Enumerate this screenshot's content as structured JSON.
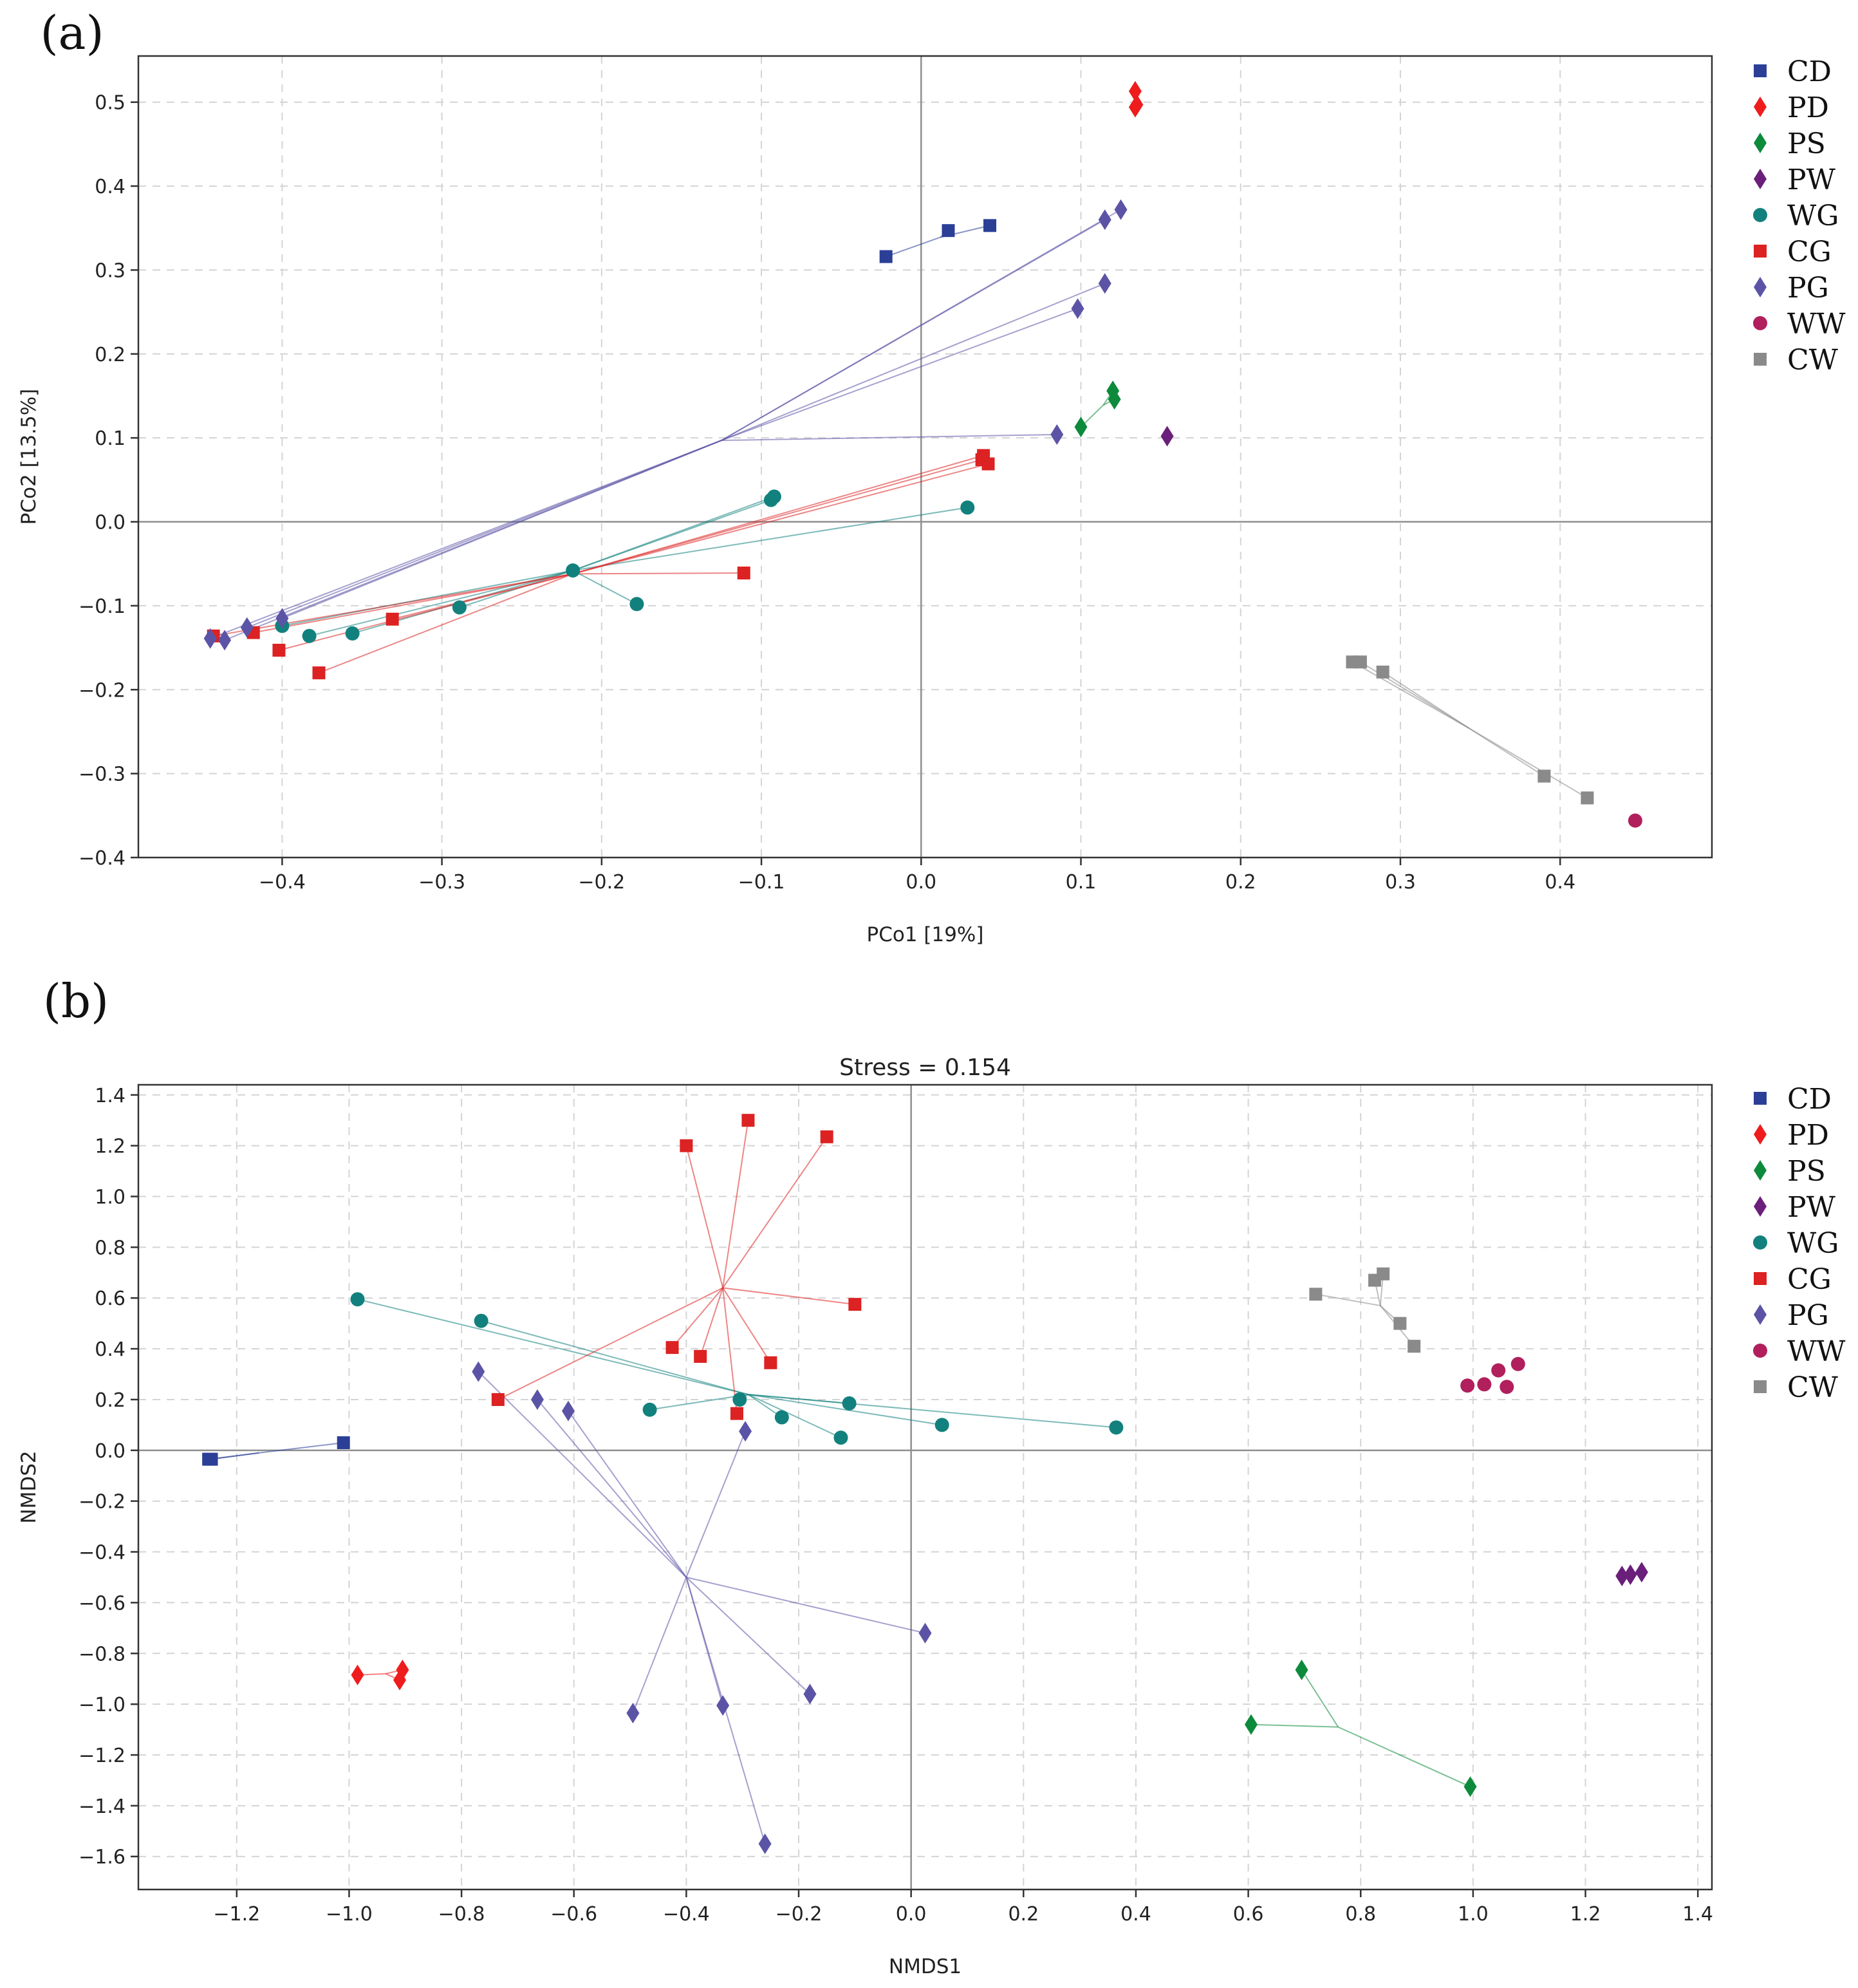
{
  "chart_data": [
    {
      "panel_label": "(a)",
      "type": "scatter",
      "title": "",
      "xlabel": "PCo1 [19%]",
      "ylabel": "PCo2 [13.5%]",
      "xlim": [
        -0.49,
        0.495
      ],
      "ylim": [
        -0.4,
        0.555
      ],
      "grid": true,
      "legend_position": "outside-right",
      "xticks": [
        {
          "value": -0.4,
          "label": "−0.4"
        },
        {
          "value": -0.3,
          "label": "−0.3"
        },
        {
          "value": -0.2,
          "label": "−0.2"
        },
        {
          "value": -0.1,
          "label": "−0.1"
        },
        {
          "value": 0.0,
          "label": "0.0"
        },
        {
          "value": 0.1,
          "label": "0.1"
        },
        {
          "value": 0.2,
          "label": "0.2"
        },
        {
          "value": 0.3,
          "label": "0.3"
        },
        {
          "value": 0.4,
          "label": "0.4"
        }
      ],
      "yticks": [
        {
          "value": -0.4,
          "label": "−0.4"
        },
        {
          "value": -0.3,
          "label": "−0.3"
        },
        {
          "value": -0.2,
          "label": "−0.2"
        },
        {
          "value": -0.1,
          "label": "−0.1"
        },
        {
          "value": 0.0,
          "label": "0.0"
        },
        {
          "value": 0.1,
          "label": "0.1"
        },
        {
          "value": 0.2,
          "label": "0.2"
        },
        {
          "value": 0.3,
          "label": "0.3"
        },
        {
          "value": 0.4,
          "label": "0.4"
        },
        {
          "value": 0.5,
          "label": "0.5"
        }
      ],
      "series": [
        {
          "name": "CD",
          "color": "#2b3f97",
          "marker": "square",
          "centroid": [
            0.012,
            0.339
          ],
          "points": [
            [
              -0.022,
              0.316
            ],
            [
              0.017,
              0.347
            ],
            [
              0.043,
              0.353
            ]
          ]
        },
        {
          "name": "PD",
          "color": "#ee1c1c",
          "marker": "diamond",
          "centroid": [
            0.134,
            0.503
          ],
          "points": [
            [
              0.134,
              0.513
            ],
            [
              0.134,
              0.494
            ],
            [
              0.135,
              0.497
            ]
          ]
        },
        {
          "name": "PS",
          "color": "#0e8a3c",
          "marker": "diamond",
          "centroid": [
            0.114,
            0.139
          ],
          "points": [
            [
              0.1,
              0.113
            ],
            [
              0.12,
              0.156
            ],
            [
              0.121,
              0.146
            ]
          ]
        },
        {
          "name": "PW",
          "color": "#6a1f7a",
          "marker": "diamond",
          "centroid": null,
          "points": [
            [
              0.154,
              0.102
            ]
          ]
        },
        {
          "name": "WG",
          "color": "#12817e",
          "marker": "circle",
          "centroid": [
            -0.218,
            -0.058
          ],
          "points": [
            [
              -0.094,
              0.026
            ],
            [
              -0.092,
              0.03
            ],
            [
              0.029,
              0.017
            ],
            [
              -0.178,
              -0.098
            ],
            [
              -0.289,
              -0.102
            ],
            [
              -0.356,
              -0.133
            ],
            [
              -0.383,
              -0.136
            ],
            [
              -0.4,
              -0.124
            ],
            [
              -0.218,
              -0.058
            ]
          ]
        },
        {
          "name": "CG",
          "color": "#dc2222",
          "marker": "square",
          "centroid": [
            -0.218,
            -0.062
          ],
          "points": [
            [
              0.039,
              0.079
            ],
            [
              0.042,
              0.069
            ],
            [
              0.038,
              0.074
            ],
            [
              -0.111,
              -0.061
            ],
            [
              -0.331,
              -0.116
            ],
            [
              -0.418,
              -0.132
            ],
            [
              -0.402,
              -0.153
            ],
            [
              -0.377,
              -0.18
            ],
            [
              -0.443,
              -0.136
            ]
          ]
        },
        {
          "name": "PG",
          "color": "#5b54a6",
          "marker": "diamond",
          "centroid": [
            -0.125,
            0.097
          ],
          "points": [
            [
              0.115,
              0.36
            ],
            [
              0.125,
              0.372
            ],
            [
              0.115,
              0.284
            ],
            [
              0.098,
              0.254
            ],
            [
              0.085,
              0.104
            ],
            [
              -0.4,
              -0.115
            ],
            [
              -0.422,
              -0.126
            ],
            [
              -0.436,
              -0.141
            ],
            [
              -0.445,
              -0.139
            ]
          ]
        },
        {
          "name": "WW",
          "color": "#b11f5c",
          "marker": "circle",
          "centroid": null,
          "points": [
            [
              0.447,
              -0.356
            ]
          ]
        },
        {
          "name": "CW",
          "color": "#8a8a8a",
          "marker": "square",
          "centroid": [
            0.343,
            -0.246
          ],
          "points": [
            [
              0.27,
              -0.167
            ],
            [
              0.275,
              -0.167
            ],
            [
              0.289,
              -0.179
            ],
            [
              0.39,
              -0.303
            ],
            [
              0.417,
              -0.329
            ]
          ]
        }
      ]
    },
    {
      "panel_label": "(b)",
      "type": "scatter",
      "title": "Stress = 0.154",
      "xlabel": "NMDS1",
      "ylabel": "NMDS2",
      "xlim": [
        -1.375,
        1.425
      ],
      "ylim": [
        -1.73,
        1.44
      ],
      "grid": true,
      "legend_position": "outside-right",
      "xticks": [
        {
          "value": -1.2,
          "label": "−1.2"
        },
        {
          "value": -1.0,
          "label": "−1.0"
        },
        {
          "value": -0.8,
          "label": "−0.8"
        },
        {
          "value": -0.6,
          "label": "−0.6"
        },
        {
          "value": -0.4,
          "label": "−0.4"
        },
        {
          "value": -0.2,
          "label": "−0.2"
        },
        {
          "value": 0.0,
          "label": "0.0"
        },
        {
          "value": 0.2,
          "label": "0.2"
        },
        {
          "value": 0.4,
          "label": "0.4"
        },
        {
          "value": 0.6,
          "label": "0.6"
        },
        {
          "value": 0.8,
          "label": "0.8"
        },
        {
          "value": 1.0,
          "label": "1.0"
        },
        {
          "value": 1.2,
          "label": "1.2"
        },
        {
          "value": 1.4,
          "label": "1.4"
        }
      ],
      "yticks": [
        {
          "value": -1.6,
          "label": "−1.6"
        },
        {
          "value": -1.4,
          "label": "−1.4"
        },
        {
          "value": -1.2,
          "label": "−1.2"
        },
        {
          "value": -1.0,
          "label": "−1.0"
        },
        {
          "value": -0.8,
          "label": "−0.8"
        },
        {
          "value": -0.6,
          "label": "−0.6"
        },
        {
          "value": -0.4,
          "label": "−0.4"
        },
        {
          "value": -0.2,
          "label": "−0.2"
        },
        {
          "value": 0.0,
          "label": "0.0"
        },
        {
          "value": 0.2,
          "label": "0.2"
        },
        {
          "value": 0.4,
          "label": "0.4"
        },
        {
          "value": 0.6,
          "label": "0.6"
        },
        {
          "value": 0.8,
          "label": "0.8"
        },
        {
          "value": 1.0,
          "label": "1.0"
        },
        {
          "value": 1.2,
          "label": "1.2"
        },
        {
          "value": 1.4,
          "label": "1.4"
        }
      ],
      "series": [
        {
          "name": "CD",
          "color": "#2b3f97",
          "marker": "square",
          "centroid": [
            -1.16,
            -0.01
          ],
          "points": [
            [
              -1.25,
              -0.035
            ],
            [
              -1.245,
              -0.035
            ],
            [
              -1.01,
              0.03
            ]
          ]
        },
        {
          "name": "PD",
          "color": "#ee1c1c",
          "marker": "diamond",
          "centroid": [
            -0.935,
            -0.88
          ],
          "points": [
            [
              -0.985,
              -0.885
            ],
            [
              -0.905,
              -0.865
            ],
            [
              -0.91,
              -0.905
            ]
          ]
        },
        {
          "name": "PS",
          "color": "#0e8a3c",
          "marker": "diamond",
          "centroid": [
            0.76,
            -1.09
          ],
          "points": [
            [
              0.695,
              -0.865
            ],
            [
              0.605,
              -1.08
            ],
            [
              0.995,
              -1.325
            ]
          ]
        },
        {
          "name": "PW",
          "color": "#6a1f7a",
          "marker": "diamond",
          "centroid": null,
          "points": [
            [
              1.265,
              -0.495
            ],
            [
              1.28,
              -0.49
            ],
            [
              1.3,
              -0.48
            ]
          ]
        },
        {
          "name": "WG",
          "color": "#12817e",
          "marker": "circle",
          "centroid": [
            -0.29,
            0.22
          ],
          "points": [
            [
              -0.985,
              0.595
            ],
            [
              -0.765,
              0.51
            ],
            [
              -0.465,
              0.16
            ],
            [
              -0.305,
              0.2
            ],
            [
              -0.23,
              0.13
            ],
            [
              -0.11,
              0.185
            ],
            [
              -0.125,
              0.05
            ],
            [
              0.055,
              0.1
            ],
            [
              0.365,
              0.09
            ]
          ]
        },
        {
          "name": "CG",
          "color": "#dc2222",
          "marker": "square",
          "centroid": [
            -0.335,
            0.64
          ],
          "points": [
            [
              -0.4,
              1.2
            ],
            [
              -0.29,
              1.3
            ],
            [
              -0.15,
              1.235
            ],
            [
              -0.1,
              0.575
            ],
            [
              -0.425,
              0.405
            ],
            [
              -0.375,
              0.37
            ],
            [
              -0.25,
              0.345
            ],
            [
              -0.31,
              0.145
            ],
            [
              -0.735,
              0.2
            ]
          ]
        },
        {
          "name": "PG",
          "color": "#5b54a6",
          "marker": "diamond",
          "centroid": [
            -0.4,
            -0.5
          ],
          "points": [
            [
              -0.77,
              0.31
            ],
            [
              -0.665,
              0.2
            ],
            [
              -0.61,
              0.155
            ],
            [
              -0.295,
              0.075
            ],
            [
              0.025,
              -0.72
            ],
            [
              -0.18,
              -0.96
            ],
            [
              -0.335,
              -1.005
            ],
            [
              -0.495,
              -1.035
            ],
            [
              -0.26,
              -1.55
            ]
          ]
        },
        {
          "name": "WW",
          "color": "#b11f5c",
          "marker": "circle",
          "centroid": null,
          "points": [
            [
              0.99,
              0.255
            ],
            [
              1.02,
              0.26
            ],
            [
              1.045,
              0.315
            ],
            [
              1.06,
              0.25
            ],
            [
              1.08,
              0.34
            ]
          ]
        },
        {
          "name": "CW",
          "color": "#8a8a8a",
          "marker": "square",
          "centroid": [
            0.835,
            0.57
          ],
          "points": [
            [
              0.72,
              0.615
            ],
            [
              0.825,
              0.67
            ],
            [
              0.84,
              0.695
            ],
            [
              0.87,
              0.5
            ],
            [
              0.895,
              0.41
            ]
          ]
        }
      ]
    }
  ]
}
